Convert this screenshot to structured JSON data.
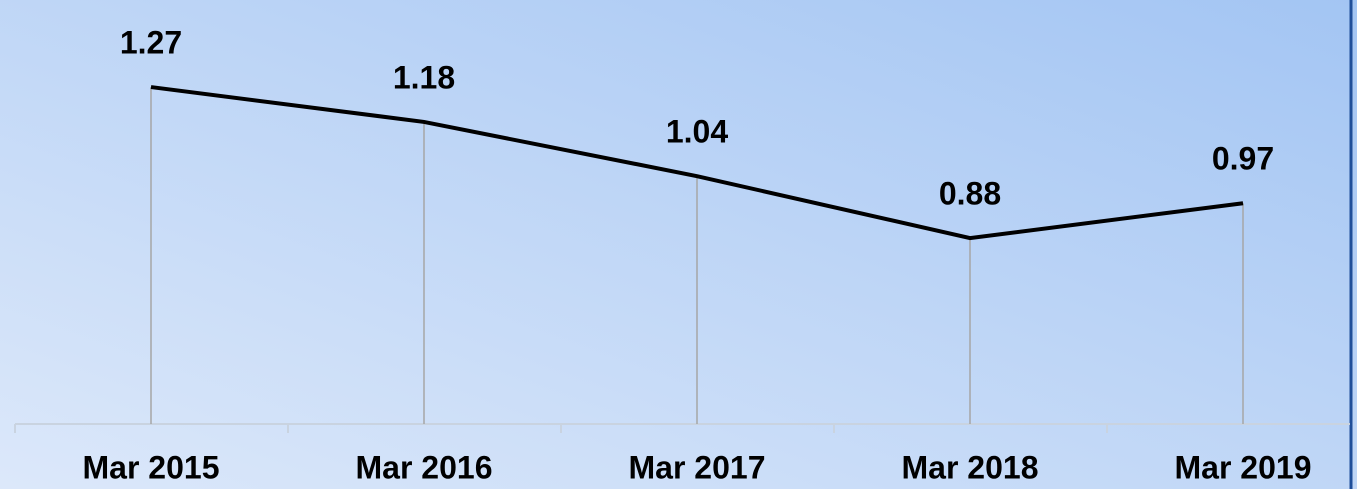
{
  "chart_data": {
    "type": "line",
    "categories": [
      "Mar 2015",
      "Mar 2016",
      "Mar 2017",
      "Mar 2018",
      "Mar 2019"
    ],
    "values": [
      1.27,
      1.18,
      1.04,
      0.88,
      0.97
    ],
    "color": "#000000",
    "ylim": [
      0.4,
      1.5
    ]
  }
}
